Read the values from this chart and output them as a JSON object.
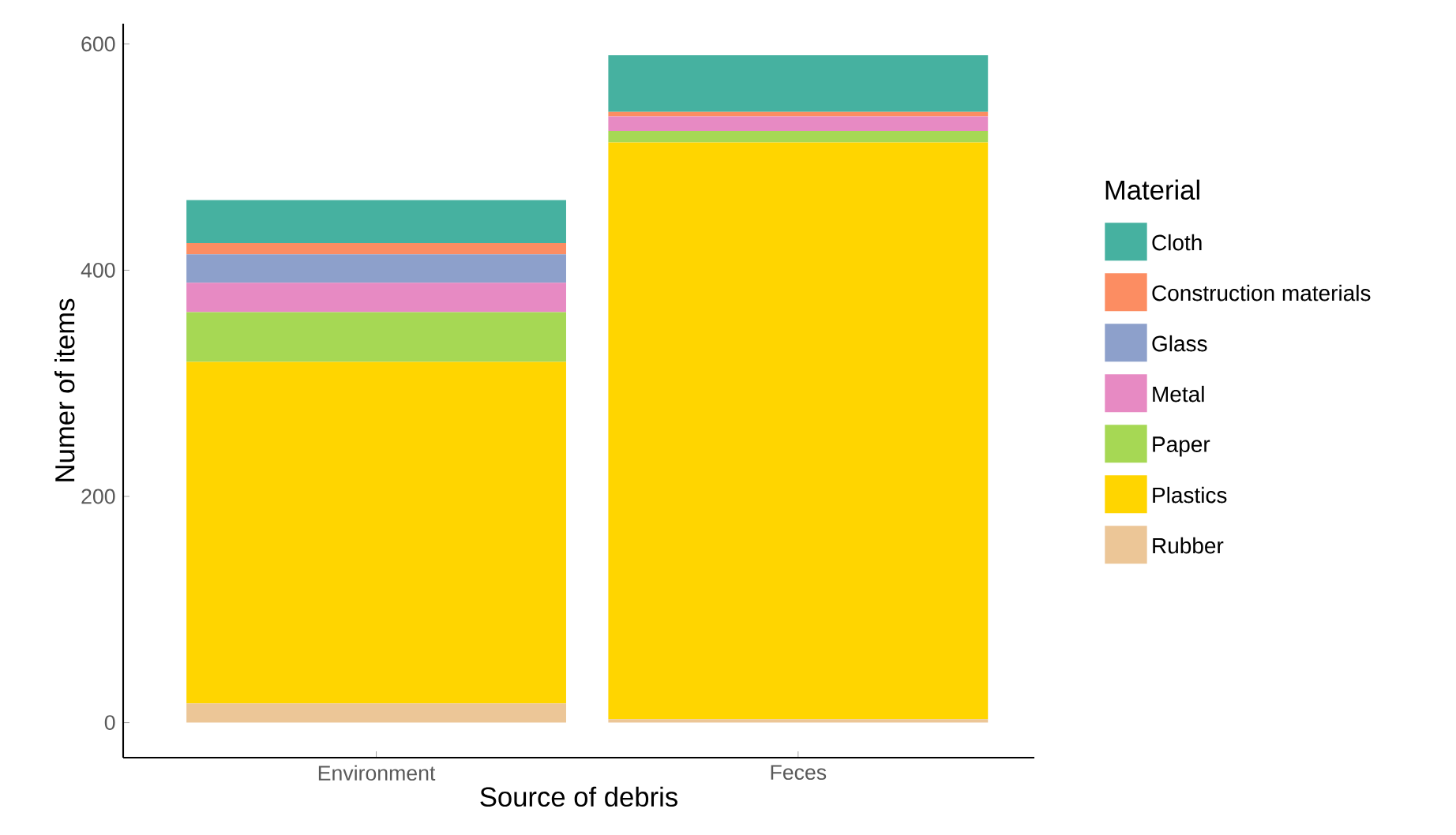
{
  "chart_data": {
    "type": "bar",
    "stacked": true,
    "xlabel": "Source of debris",
    "ylabel": "Numer of items",
    "legend_title": "Material",
    "categories": [
      "Environment",
      "Feces"
    ],
    "series": [
      {
        "name": "Rubber",
        "color": "#ecc697",
        "values": [
          17,
          3
        ]
      },
      {
        "name": "Plastics",
        "color": "#ffd500",
        "values": [
          302,
          510
        ]
      },
      {
        "name": "Paper",
        "color": "#a6d854",
        "values": [
          44,
          10
        ]
      },
      {
        "name": "Metal",
        "color": "#e78ac3",
        "values": [
          26,
          13
        ]
      },
      {
        "name": "Glass",
        "color": "#8da0cb",
        "values": [
          25,
          0
        ]
      },
      {
        "name": "Construction materials",
        "color": "#fc8d62",
        "values": [
          10,
          4
        ]
      },
      {
        "name": "Cloth",
        "color": "#46b1a0",
        "values": [
          38,
          50
        ]
      }
    ],
    "ylim": [
      -31,
      618
    ],
    "yticks": [
      0,
      200,
      400,
      600
    ],
    "grid": false,
    "legend": "right"
  }
}
